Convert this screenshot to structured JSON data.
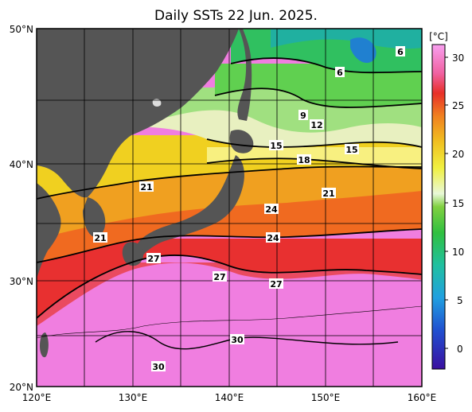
{
  "title": "Daily SSTs 22 Jun. 2025.",
  "colorbar": {
    "unit_label": "[°C]",
    "ticks": [
      "30",
      "25",
      "20",
      "15",
      "10",
      "5",
      "0"
    ],
    "range": [
      -2,
      32
    ]
  },
  "axes": {
    "lat_labels": [
      "50°N",
      "40°N",
      "30°N",
      "20°N"
    ],
    "lon_labels": [
      "120°E",
      "130°E",
      "140°E",
      "150°E",
      "160°E"
    ],
    "lat_range": [
      20,
      50
    ],
    "lon_range": [
      120,
      160
    ]
  },
  "isotherm_labels": [
    "6",
    "6",
    "9",
    "12",
    "15",
    "15",
    "18",
    "21",
    "21",
    "24",
    "24",
    "21",
    "27",
    "27",
    "27",
    "30",
    "30"
  ],
  "colors": {
    "land": "#555555",
    "warm_30": "#f07ee0",
    "hot_27": "#e83030",
    "orange_24": "#f08a20",
    "yellow_21": "#f0e020",
    "cool_15": "#a0e080",
    "cold_9": "#30c060"
  }
}
